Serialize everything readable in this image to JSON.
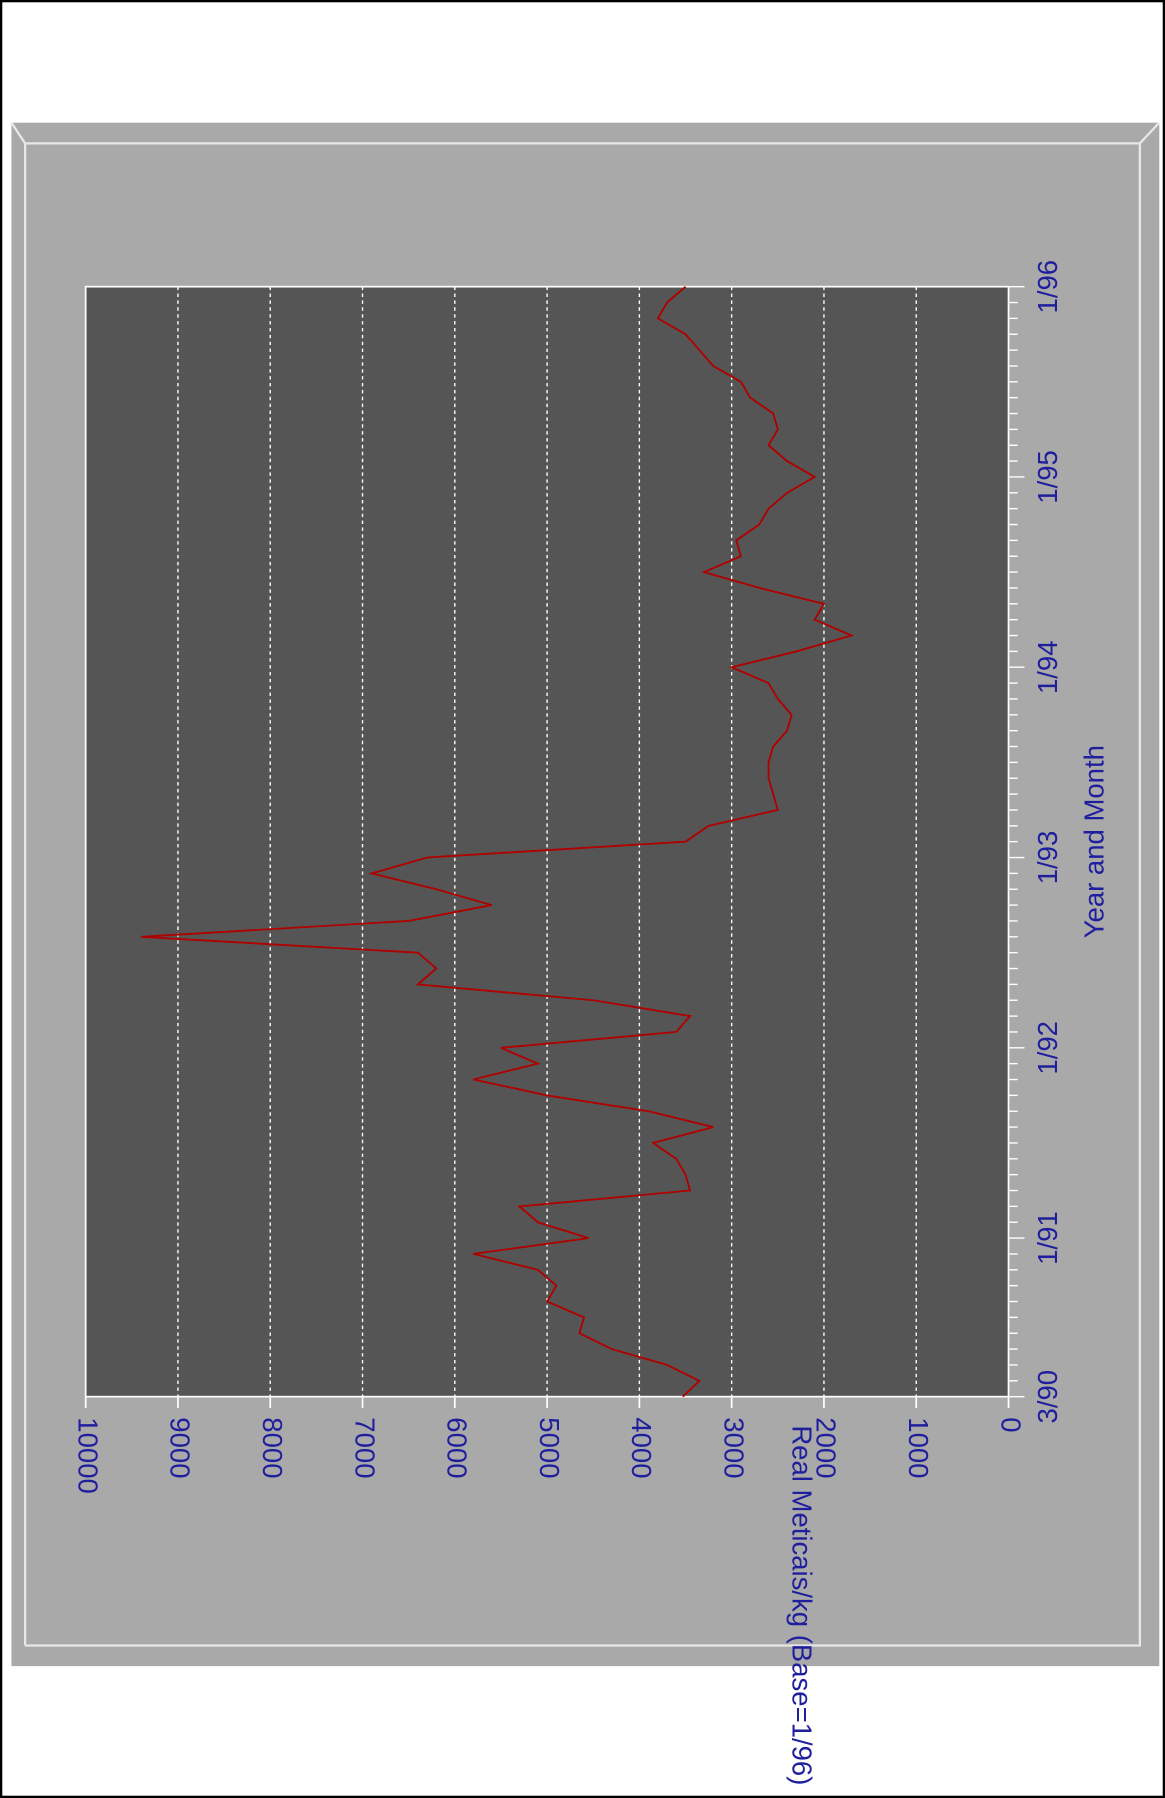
{
  "chart_data": {
    "type": "line",
    "x_label": "Year and Month",
    "y_label": "Real Meticais/kg (Base=1/96)",
    "categories": [
      "3/90",
      null,
      null,
      null,
      null,
      null,
      null,
      null,
      null,
      null,
      "1/91",
      null,
      null,
      null,
      null,
      null,
      null,
      null,
      null,
      null,
      null,
      null,
      "1/92",
      null,
      null,
      null,
      null,
      null,
      null,
      null,
      null,
      null,
      null,
      null,
      "1/93",
      null,
      null,
      null,
      null,
      null,
      null,
      null,
      null,
      null,
      null,
      null,
      "1/94",
      null,
      null,
      null,
      null,
      null,
      null,
      null,
      null,
      null,
      null,
      null,
      "1/95",
      null,
      null,
      null,
      null,
      null,
      null,
      null,
      null,
      null,
      null,
      null,
      "1/96"
    ],
    "values": [
      3530,
      3350,
      3700,
      4300,
      4650,
      4600,
      5000,
      4900,
      5100,
      5800,
      4550,
      5100,
      5300,
      3450,
      3500,
      3600,
      3850,
      3200,
      3900,
      5000,
      5800,
      5100,
      5500,
      3600,
      3450,
      4500,
      6400,
      6200,
      6400,
      9400,
      6500,
      5600,
      6200,
      6900,
      6300,
      3500,
      3250,
      2500,
      2550,
      2600,
      2600,
      2550,
      2400,
      2350,
      2500,
      2600,
      3000,
      2300,
      1700,
      2100,
      2000,
      2700,
      3300,
      2900,
      2950,
      2700,
      2600,
      2400,
      2100,
      2400,
      2600,
      2500,
      2550,
      2800,
      2900,
      3200,
      3350,
      3500,
      3800,
      3700,
      3500
    ],
    "color": "#b00000",
    "ylim": [
      0,
      10000
    ],
    "yticks": [
      0,
      1000,
      2000,
      3000,
      4000,
      5000,
      6000,
      7000,
      8000,
      9000,
      10000
    ],
    "grid": true
  }
}
